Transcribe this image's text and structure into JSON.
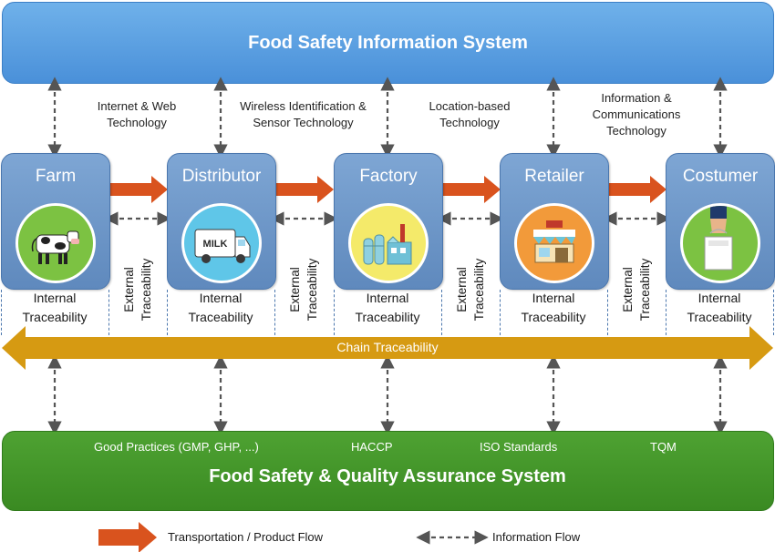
{
  "top_system": {
    "title": "Food Safety Information System"
  },
  "technologies": [
    {
      "lines": [
        "Internet & Web",
        "Technology"
      ]
    },
    {
      "lines": [
        "Wireless Identification &",
        "Sensor Technology"
      ]
    },
    {
      "lines": [
        "Location-based",
        "Technology"
      ]
    },
    {
      "lines": [
        "Information &",
        "Communications",
        "Technology"
      ]
    }
  ],
  "stages": [
    {
      "name": "Farm",
      "icon": "cow-icon"
    },
    {
      "name": "Distributor",
      "icon": "milk-truck-icon"
    },
    {
      "name": "Factory",
      "icon": "factory-icon"
    },
    {
      "name": "Retailer",
      "icon": "store-icon"
    },
    {
      "name": "Costumer",
      "icon": "shopping-bag-hand-icon"
    }
  ],
  "internal_traceability": {
    "line1": "Internal",
    "line2": "Traceability"
  },
  "external_traceability": {
    "line1": "External",
    "line2": "Traceability"
  },
  "chain_traceability": {
    "label": "Chain Traceability"
  },
  "bottom_system": {
    "title": "Food Safety & Quality Assurance System",
    "practices": [
      "Good Practices (GMP, GHP, ...)",
      "HACCP",
      "ISO Standards",
      "TQM"
    ]
  },
  "legend": {
    "transport_label": "Transportation / Product Flow",
    "info_label": "Information Flow"
  },
  "colors": {
    "top_banner": "#4a90d9",
    "stage_card": "#6b93c6",
    "product_arrow": "#d9531e",
    "chain_arrow": "#d69a12",
    "bottom_banner": "#3f922a",
    "dashed_arrow": "#555555"
  }
}
